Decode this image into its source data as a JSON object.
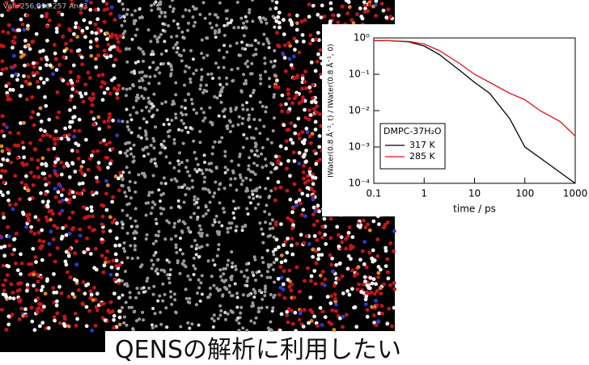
{
  "snapshot_label": "Vol=256,096.257 Ang3",
  "caption": "QENSの解析に利用したい",
  "chart_data": {
    "type": "line",
    "x_label": "time / ps",
    "y_label": "IWater(0.8 Å⁻¹, t) / IWater(0.8 Å⁻¹, 0)",
    "legend_title": "DMPC-37H₂O",
    "x": [
      0.1,
      0.2,
      0.5,
      1,
      2,
      5,
      10,
      20,
      50,
      100,
      200,
      500,
      1000
    ],
    "series": [
      {
        "name": "317 K",
        "color": "#000000",
        "values": [
          0.85,
          0.84,
          0.78,
          0.6,
          0.35,
          0.13,
          0.06,
          0.03,
          0.006,
          0.001,
          0.0005,
          0.0002,
          0.0001
        ]
      },
      {
        "name": "285 K",
        "color": "#e8121b",
        "values": [
          0.85,
          0.84,
          0.8,
          0.68,
          0.45,
          0.2,
          0.1,
          0.06,
          0.03,
          0.02,
          0.01,
          0.005,
          0.002
        ]
      }
    ],
    "xlim": [
      0.1,
      1000
    ],
    "ylim": [
      0.0001,
      1
    ],
    "xticks": [
      0.1,
      1,
      10,
      100,
      1000
    ],
    "yticks": [
      {
        "value": 1,
        "label": "10⁰"
      },
      {
        "value": 0.1,
        "label": "10⁻¹"
      },
      {
        "value": 0.01,
        "label": "10⁻²"
      },
      {
        "value": 0.001,
        "label": "10⁻³"
      },
      {
        "value": 0.0001,
        "label": "10⁻⁴"
      }
    ],
    "xscale": "log",
    "yscale": "log",
    "legend": "lower-left"
  }
}
